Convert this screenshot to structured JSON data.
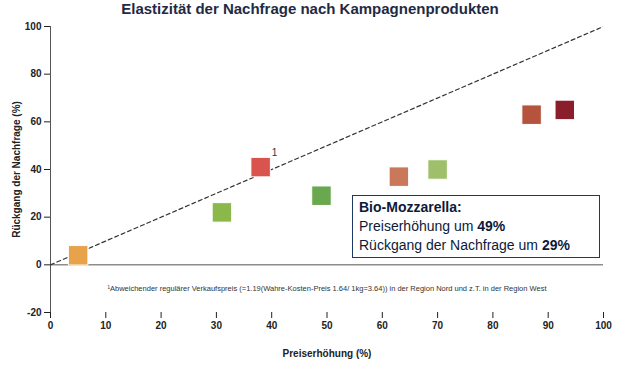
{
  "chart_data": {
    "type": "scatter",
    "title": "Elastizität der Nachfrage nach Kampagnenprodukten",
    "x_label": "Preiserhöhung (%)",
    "y_label": "Rückgang der Nachfrage (%)",
    "x": [
      5,
      31,
      38,
      49,
      63,
      70,
      87,
      93
    ],
    "values": [
      4,
      22,
      41,
      29,
      37,
      40,
      63,
      65
    ],
    "colors": [
      "#e8a24a",
      "#8bb84a",
      "#d9534f",
      "#6aa84f",
      "#c9785a",
      "#9fbf6a",
      "#b5533c",
      "#8b1e2b"
    ],
    "marker": "square",
    "point_labels": [
      null,
      null,
      "1",
      null,
      null,
      null,
      null,
      null
    ],
    "diagonal": {
      "x": [
        0,
        100
      ],
      "y": [
        0,
        100
      ],
      "line_style": "dashed"
    },
    "xlim": [
      0,
      100
    ],
    "xticks": [
      0,
      10,
      20,
      30,
      40,
      50,
      60,
      70,
      80,
      90,
      100
    ],
    "ylim": [
      -20,
      100
    ],
    "yticks": [
      -20,
      0,
      20,
      40,
      60,
      80,
      100
    ],
    "annotation": [
      [
        "Bio-Mozzarella:"
      ],
      [
        "Preiserhöhung um ",
        "49%"
      ],
      [
        "Rückgang der Nachfrage um ",
        "29%"
      ]
    ],
    "footnote": "¹Abweichender regulärer Verkaufspreis (=1.19(Wahre-Kosten-Preis 1.64/ 1kg=3.64)) in der Region Nord und z.T. in der Region West"
  }
}
